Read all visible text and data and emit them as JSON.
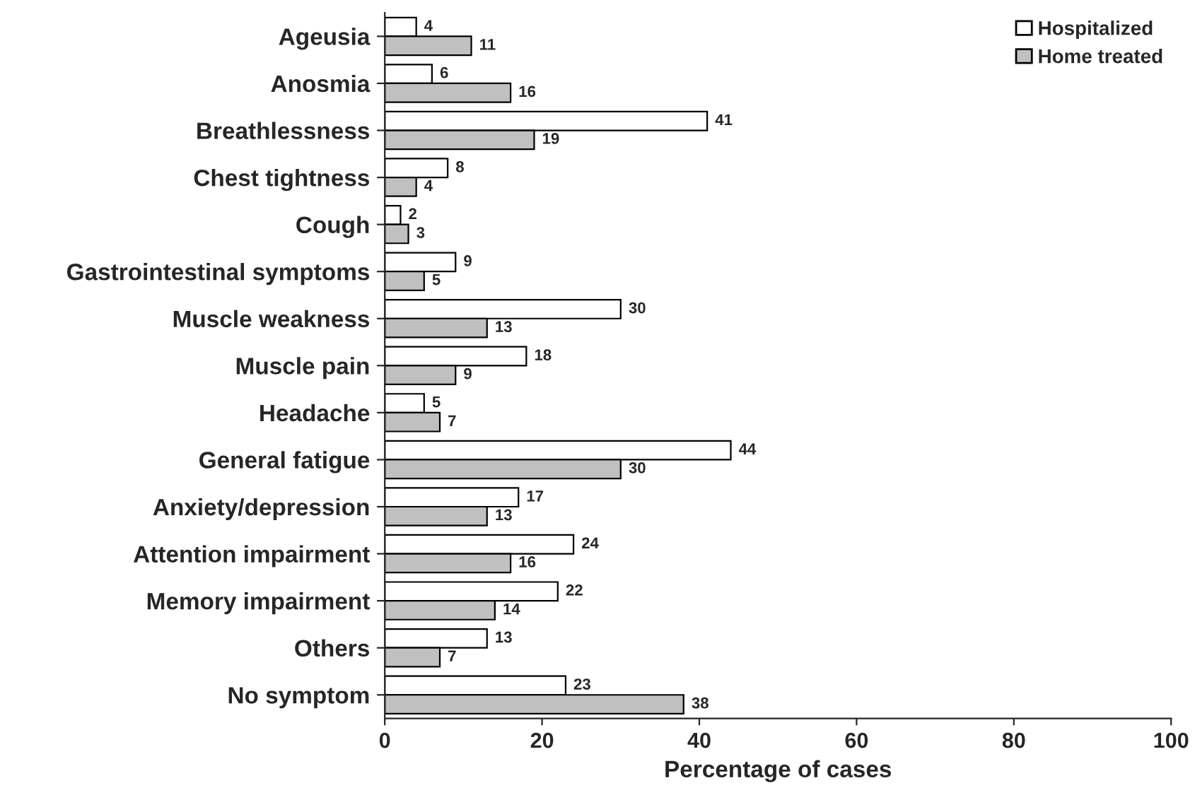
{
  "chart_data": {
    "type": "bar",
    "orientation": "horizontal",
    "xlabel": "Percentage of cases",
    "categories": [
      "Ageusia",
      "Anosmia",
      "Breathlessness",
      "Chest tightness",
      "Cough",
      "Gastrointestinal symptoms",
      "Muscle weakness",
      "Muscle pain",
      "Headache",
      "General fatigue",
      "Anxiety/depression",
      "Attention impairment",
      "Memory impairment",
      "Others",
      "No symptom"
    ],
    "series": [
      {
        "name": "Hospitalized",
        "color": "#ffffff",
        "values": [
          4,
          6,
          41,
          8,
          2,
          9,
          30,
          18,
          5,
          44,
          17,
          24,
          22,
          13,
          23
        ]
      },
      {
        "name": "Home treated",
        "color": "#c0c0c0",
        "values": [
          11,
          16,
          19,
          4,
          3,
          5,
          13,
          9,
          7,
          30,
          13,
          16,
          14,
          7,
          38
        ]
      }
    ],
    "xlim": [
      0,
      100
    ],
    "xticks": [
      0,
      20,
      40,
      60,
      80,
      100
    ],
    "grid": false,
    "legend": "top right",
    "data_labels": true
  }
}
